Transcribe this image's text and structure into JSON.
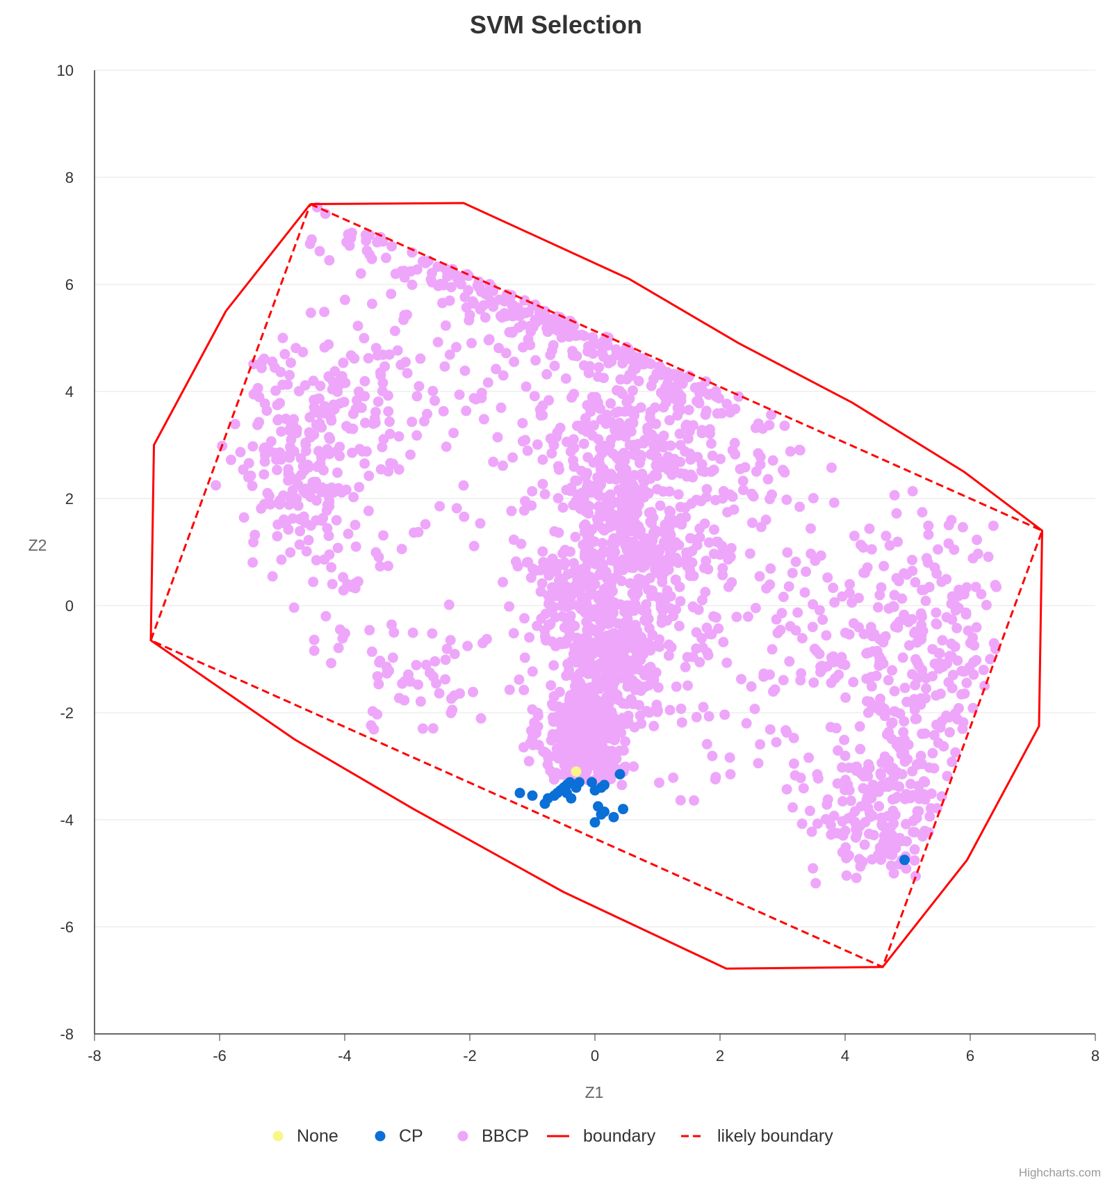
{
  "chart_data": {
    "type": "scatter",
    "title": "SVM Selection",
    "xlabel": "Z1",
    "ylabel": "Z2",
    "xlim": [
      -8,
      8
    ],
    "ylim": [
      -8,
      10
    ],
    "xticks": [
      "-8",
      "-6",
      "-4",
      "-2",
      "0",
      "2",
      "4",
      "6",
      "8"
    ],
    "yticks": [
      "-8",
      "-6",
      "-4",
      "-2",
      "0",
      "2",
      "4",
      "6",
      "8",
      "10"
    ],
    "grid": "horizontal",
    "legend_position": "bottom-center",
    "credits": "Highcharts.com",
    "series": [
      {
        "name": "None",
        "kind": "points",
        "color": "#f7f78a",
        "points": [
          [
            -0.3,
            -3.1
          ]
        ]
      },
      {
        "name": "CP",
        "kind": "points",
        "color": "#0a6fd6",
        "points": [
          [
            -1.2,
            -3.5
          ],
          [
            -1.0,
            -3.55
          ],
          [
            -0.8,
            -3.7
          ],
          [
            -0.75,
            -3.6
          ],
          [
            -0.65,
            -3.55
          ],
          [
            -0.6,
            -3.5
          ],
          [
            -0.55,
            -3.45
          ],
          [
            -0.5,
            -3.4
          ],
          [
            -0.45,
            -3.35
          ],
          [
            -0.4,
            -3.3
          ],
          [
            -0.45,
            -3.5
          ],
          [
            -0.38,
            -3.6
          ],
          [
            -0.3,
            -3.4
          ],
          [
            -0.25,
            -3.3
          ],
          [
            -0.05,
            -3.3
          ],
          [
            0.0,
            -3.45
          ],
          [
            0.1,
            -3.4
          ],
          [
            0.15,
            -3.35
          ],
          [
            0.05,
            -3.75
          ],
          [
            0.1,
            -3.9
          ],
          [
            0.15,
            -3.85
          ],
          [
            0.0,
            -4.05
          ],
          [
            0.3,
            -3.95
          ],
          [
            0.45,
            -3.8
          ],
          [
            0.4,
            -3.15
          ],
          [
            4.95,
            -4.75
          ]
        ]
      },
      {
        "name": "BBCP",
        "kind": "points",
        "color": "#eea6fb",
        "clusters": [
          {
            "cx": -0.15,
            "cy": -2.4,
            "sx": 0.35,
            "sy": 0.6,
            "n": 380,
            "rot": 0
          },
          {
            "cx": 0.1,
            "cy": -0.5,
            "sx": 0.45,
            "sy": 0.9,
            "n": 380,
            "rot": 0.35
          },
          {
            "cx": 0.6,
            "cy": 1.3,
            "sx": 0.45,
            "sy": 0.9,
            "n": 300,
            "rot": 0.3
          },
          {
            "cx": 0.4,
            "cy": 3.3,
            "sx": 0.7,
            "sy": 0.9,
            "n": 170,
            "rot": 0
          },
          {
            "cx": -1.1,
            "cy": 6.0,
            "sx": 1.8,
            "sy": 0.4,
            "n": 130,
            "rot": -0.4
          },
          {
            "cx": 1.5,
            "cy": 4.7,
            "sx": 1.5,
            "sy": 0.4,
            "n": 90,
            "rot": -0.25
          },
          {
            "cx": 1.4,
            "cy": 2.8,
            "sx": 1.0,
            "sy": 0.8,
            "n": 100,
            "rot": 0
          },
          {
            "cx": 1.3,
            "cy": 0.6,
            "sx": 0.9,
            "sy": 0.7,
            "n": 90,
            "rot": 0
          },
          {
            "cx": -4.8,
            "cy": 2.6,
            "sx": 0.5,
            "sy": 1.3,
            "n": 200,
            "rot": 0.3
          },
          {
            "cx": -4.0,
            "cy": 4.0,
            "sx": 0.5,
            "sy": 0.8,
            "n": 80,
            "rot": 0
          },
          {
            "cx": -2.8,
            "cy": -1.2,
            "sx": 0.8,
            "sy": 0.6,
            "n": 60,
            "rot": 0
          },
          {
            "cx": -2.5,
            "cy": 3.6,
            "sx": 0.9,
            "sy": 1.4,
            "n": 70,
            "rot": 0
          },
          {
            "cx": 4.6,
            "cy": -3.8,
            "sx": 0.55,
            "sy": 0.75,
            "n": 180,
            "rot": 0
          },
          {
            "cx": 5.3,
            "cy": -1.8,
            "sx": 0.55,
            "sy": 1.0,
            "n": 130,
            "rot": 0
          },
          {
            "cx": 5.2,
            "cy": 0.3,
            "sx": 0.7,
            "sy": 0.8,
            "n": 90,
            "rot": 0
          },
          {
            "cx": 4.2,
            "cy": -0.4,
            "sx": 0.7,
            "sy": 1.0,
            "n": 60,
            "rot": 0
          },
          {
            "cx": 2.5,
            "cy": -2.0,
            "sx": 0.8,
            "sy": 1.0,
            "n": 60,
            "rot": 0
          },
          {
            "cx": 2.5,
            "cy": 2.5,
            "sx": 0.8,
            "sy": 1.0,
            "n": 50,
            "rot": 0
          }
        ]
      },
      {
        "name": "boundary",
        "kind": "line",
        "dash": false,
        "color": "#ff0000",
        "points": [
          [
            -4.55,
            7.5
          ],
          [
            -2.1,
            7.52
          ],
          [
            0.55,
            6.1
          ],
          [
            2.3,
            4.9
          ],
          [
            4.1,
            3.8
          ],
          [
            5.9,
            2.5
          ],
          [
            7.15,
            1.4
          ],
          [
            7.1,
            -2.25
          ],
          [
            5.95,
            -4.75
          ],
          [
            4.6,
            -6.75
          ],
          [
            2.1,
            -6.78
          ],
          [
            -0.5,
            -5.35
          ],
          [
            -2.9,
            -3.8
          ],
          [
            -4.8,
            -2.5
          ],
          [
            -7.1,
            -0.65
          ],
          [
            -7.05,
            3.0
          ],
          [
            -5.9,
            5.5
          ],
          [
            -4.55,
            7.5
          ]
        ]
      },
      {
        "name": "likely boundary",
        "kind": "line",
        "dash": true,
        "color": "#ff0000",
        "points": [
          [
            -4.55,
            7.5
          ],
          [
            7.15,
            1.4
          ],
          [
            4.6,
            -6.75
          ],
          [
            -7.1,
            -0.65
          ],
          [
            -4.55,
            7.5
          ]
        ]
      }
    ]
  }
}
